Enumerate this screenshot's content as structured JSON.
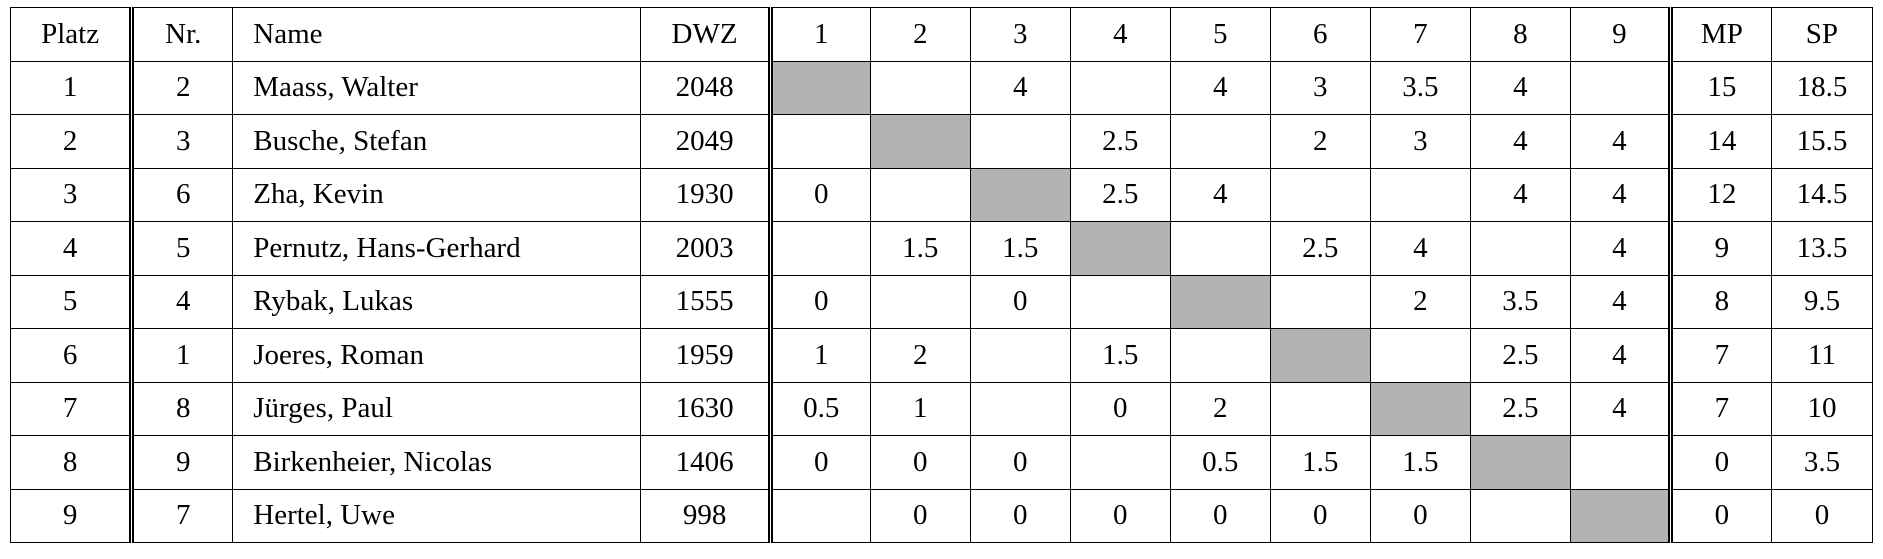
{
  "table": {
    "header": [
      "Platz",
      "Nr.",
      "Name",
      "DWZ",
      "1",
      "2",
      "3",
      "4",
      "5",
      "6",
      "7",
      "8",
      "9",
      "MP",
      "SP"
    ],
    "rows": [
      [
        "1",
        "2",
        "Maass, Walter",
        "2048",
        null,
        null,
        "4",
        null,
        "4",
        "3",
        "3.5",
        "4",
        null,
        "15",
        "18.5"
      ],
      [
        "2",
        "3",
        "Busche, Stefan",
        "2049",
        null,
        null,
        null,
        "2.5",
        null,
        "2",
        "3",
        "4",
        "4",
        "14",
        "15.5"
      ],
      [
        "3",
        "6",
        "Zha, Kevin",
        "1930",
        "0",
        null,
        null,
        "2.5",
        "4",
        null,
        null,
        "4",
        "4",
        "12",
        "14.5"
      ],
      [
        "4",
        "5",
        "Pernutz, Hans-Gerhard",
        "2003",
        null,
        "1.5",
        "1.5",
        null,
        null,
        "2.5",
        "4",
        null,
        "4",
        "9",
        "13.5"
      ],
      [
        "5",
        "4",
        "Rybak, Lukas",
        "1555",
        "0",
        null,
        "0",
        null,
        null,
        null,
        "2",
        "3.5",
        "4",
        "8",
        "9.5"
      ],
      [
        "6",
        "1",
        "Joeres, Roman",
        "1959",
        "1",
        "2",
        null,
        "1.5",
        null,
        null,
        null,
        "2.5",
        "4",
        "7",
        "11"
      ],
      [
        "7",
        "8",
        "Jürges, Paul",
        "1630",
        "0.5",
        "1",
        null,
        "0",
        "2",
        null,
        null,
        "2.5",
        "4",
        "7",
        "10"
      ],
      [
        "8",
        "9",
        "Birkenheier, Nicolas",
        "1406",
        "0",
        "0",
        "0",
        null,
        "0.5",
        "1.5",
        "1.5",
        null,
        null,
        "0",
        "3.5"
      ],
      [
        "9",
        "7",
        "Hertel, Uwe",
        "998",
        null,
        "0",
        "0",
        "0",
        "0",
        "0",
        "0",
        null,
        null,
        "0",
        "0"
      ]
    ]
  }
}
